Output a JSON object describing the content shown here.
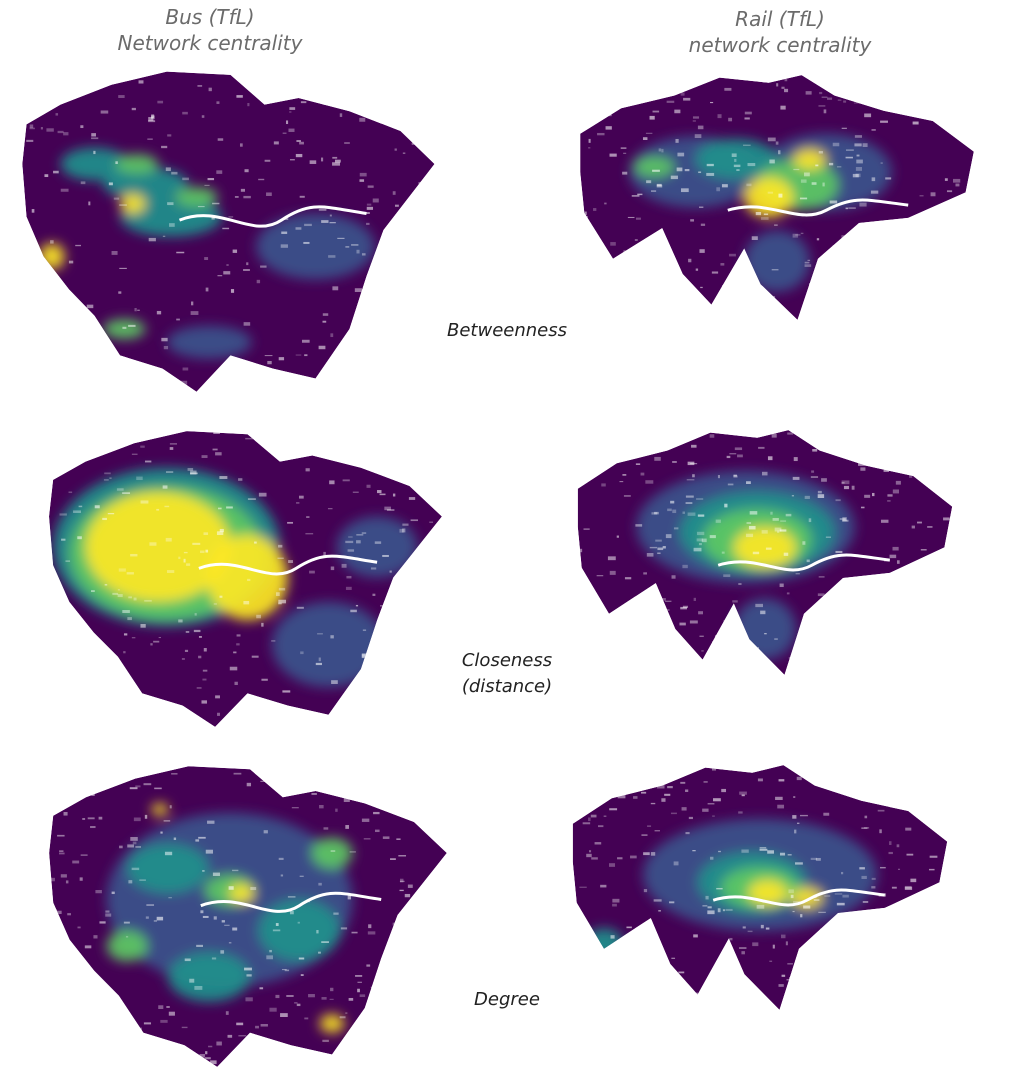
{
  "columns": [
    {
      "line1": "Bus (TfL)",
      "line2": "Network centrality"
    },
    {
      "line1": "Rail (TfL)",
      "line2": "network centrality"
    }
  ],
  "rows": [
    {
      "label": "Betweenness",
      "label2": ""
    },
    {
      "label": "Closeness",
      "label2": "(distance)"
    },
    {
      "label": "Degree",
      "label2": ""
    }
  ],
  "palette": {
    "low": "#440154",
    "mid_low": "#3b528b",
    "mid": "#21908c",
    "mid_high": "#5dc863",
    "high": "#fde725",
    "river": "#ffffff"
  }
}
